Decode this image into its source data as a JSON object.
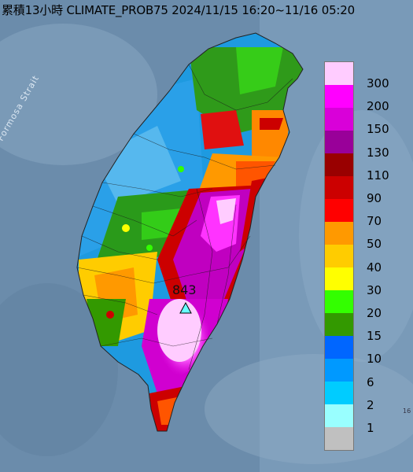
{
  "title": "累積13小時 CLIMATE_PROB75 2024/11/15 16:20~11/16 05:20",
  "map": {
    "sea_label": "Formosa Strait",
    "max_marker_value": "843",
    "edge_fragment": "16"
  },
  "legend": {
    "items": [
      {
        "label": "300",
        "color": "#ffccff"
      },
      {
        "label": "200",
        "color": "#ff00ff"
      },
      {
        "label": "150",
        "color": "#d900d9"
      },
      {
        "label": "130",
        "color": "#990099"
      },
      {
        "label": "110",
        "color": "#990000"
      },
      {
        "label": "90",
        "color": "#cc0000"
      },
      {
        "label": "70",
        "color": "#ff0000"
      },
      {
        "label": "50",
        "color": "#ff9900"
      },
      {
        "label": "40",
        "color": "#ffcc00"
      },
      {
        "label": "30",
        "color": "#ffff00"
      },
      {
        "label": "20",
        "color": "#33ff00"
      },
      {
        "label": "15",
        "color": "#339900"
      },
      {
        "label": "10",
        "color": "#0066ff"
      },
      {
        "label": "6",
        "color": "#0099ff"
      },
      {
        "label": "2",
        "color": "#00ccff"
      },
      {
        "label": "1",
        "color": "#99ffff"
      },
      {
        "label": "",
        "color": "#c0c0c0"
      }
    ]
  }
}
